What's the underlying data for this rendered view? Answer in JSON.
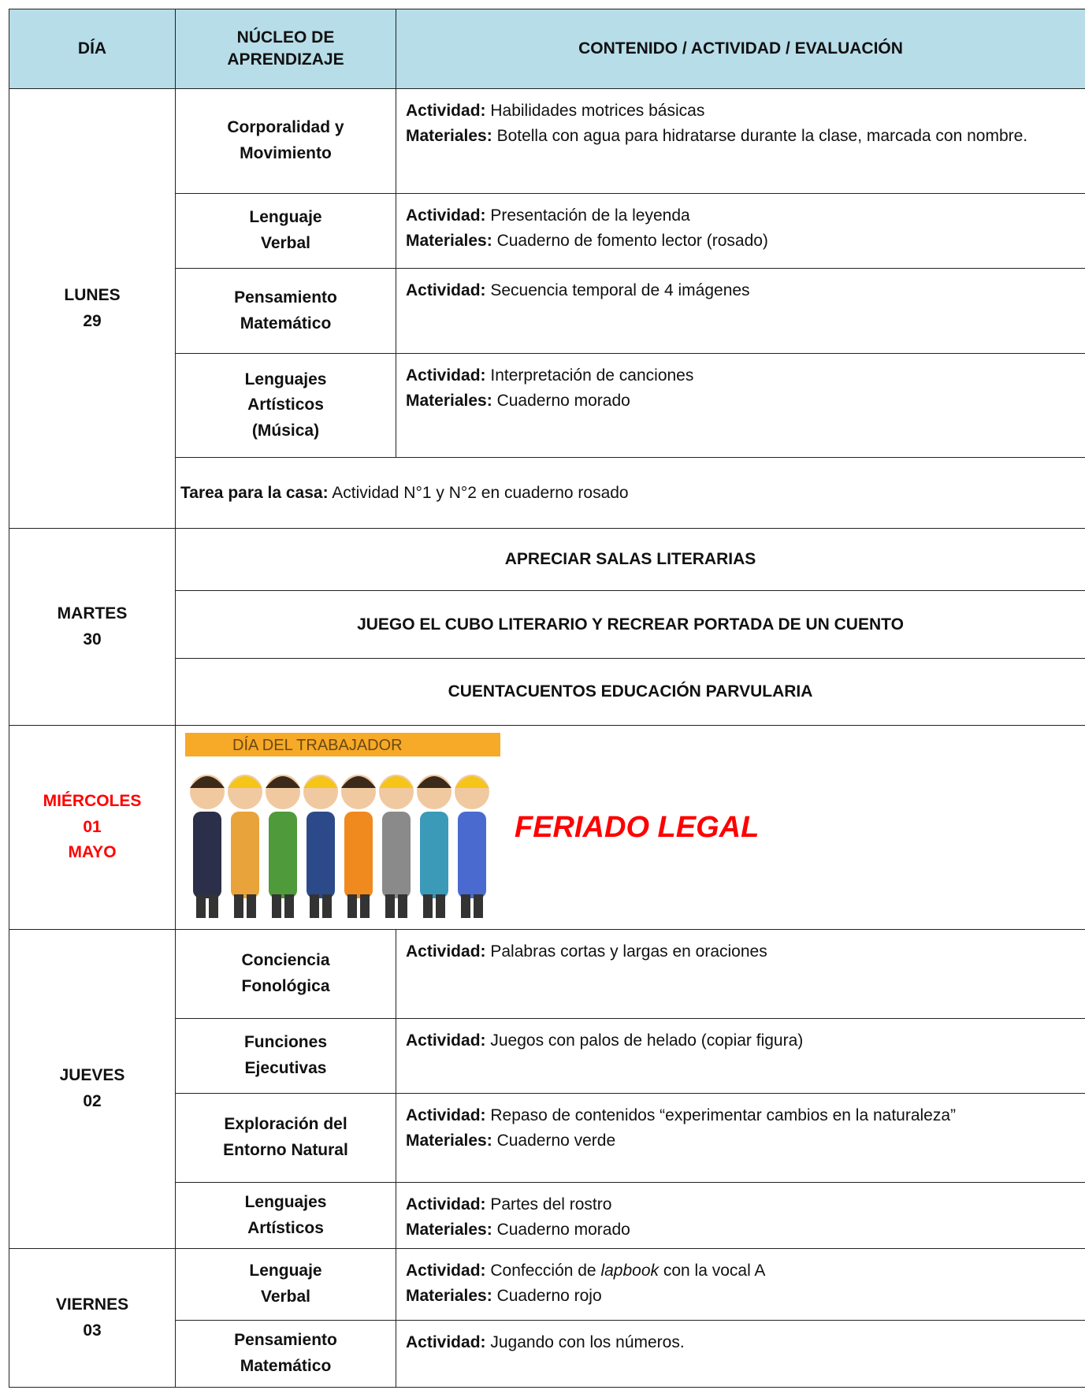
{
  "header": {
    "day": "DÍA",
    "core": [
      "NÚCLEO DE",
      "APRENDIZAJE"
    ],
    "content": "CONTENIDO / ACTIVIDAD / EVALUACIÓN"
  },
  "days": [
    {
      "day": [
        "LUNES",
        "29"
      ],
      "rows": [
        {
          "core": [
            "Corporalidad y",
            "Movimiento"
          ],
          "items": [
            {
              "label": "Actividad:",
              "text": "Habilidades motrices básicas"
            },
            {
              "label": "Materiales:",
              "text": "Botella con agua para hidratarse durante la clase, marcada con nombre."
            }
          ]
        },
        {
          "core": [
            "Lenguaje",
            "Verbal"
          ],
          "items": [
            {
              "label": "Actividad:",
              "text": "Presentación de la leyenda"
            },
            {
              "label": "Materiales:",
              "text": "Cuaderno de fomento lector (rosado)"
            }
          ]
        },
        {
          "core": [
            "Pensamiento",
            "Matemático"
          ],
          "items": [
            {
              "label": "Actividad:",
              "text": "Secuencia temporal de 4 imágenes"
            }
          ]
        },
        {
          "core": [
            "Lenguajes",
            "Artísticos",
            "(Música)"
          ],
          "items": [
            {
              "label": "Actividad:",
              "text": "Interpretación de canciones"
            },
            {
              "label": "Materiales:",
              "text": "Cuaderno morado"
            }
          ]
        }
      ],
      "homework": {
        "label": "Tarea para la casa:",
        "text": "Actividad N°1 y N°2 en cuaderno rosado"
      }
    },
    {
      "day": [
        "MARTES",
        "30"
      ],
      "events": [
        "APRECIAR SALAS LITERARIAS",
        "JUEGO EL CUBO LITERARIO Y RECREAR PORTADA DE UN CUENTO",
        "CUENTACUENTOS EDUCACIÓN PARVULARIA"
      ]
    },
    {
      "day": [
        "MIÉRCOLES",
        "01",
        "MAYO"
      ],
      "color": "#ff0000",
      "holiday": {
        "banner": "DÍA DEL TRABAJADOR",
        "text": "FERIADO LEGAL"
      }
    },
    {
      "day": [
        "JUEVES",
        "02"
      ],
      "rows": [
        {
          "core": [
            "Conciencia",
            "Fonológica"
          ],
          "items": [
            {
              "label": "Actividad:",
              "text": "Palabras cortas y largas en oraciones"
            }
          ]
        },
        {
          "core": [
            "Funciones",
            "Ejecutivas"
          ],
          "items": [
            {
              "label": "Actividad:",
              "text": "Juegos con palos de helado (copiar figura)"
            }
          ]
        },
        {
          "core": [
            "Exploración del",
            "Entorno Natural"
          ],
          "items": [
            {
              "label": "Actividad:",
              "text": "Repaso de contenidos “experimentar cambios en la naturaleza”"
            },
            {
              "label": "Materiales:",
              "text": "Cuaderno verde"
            }
          ]
        },
        {
          "core": [
            "Lenguajes",
            "Artísticos"
          ],
          "items": [
            {
              "label": "Actividad:",
              "text": "Partes del rostro"
            },
            {
              "label": "Materiales:",
              "text": "Cuaderno morado"
            }
          ]
        }
      ]
    },
    {
      "day": [
        "VIERNES",
        "03"
      ],
      "rows": [
        {
          "core": [
            "Lenguaje",
            "Verbal"
          ],
          "items": [
            {
              "label": "Actividad:",
              "text": [
                "Confección de ",
                {
                  "italic": "lapbook"
                },
                " con la vocal A"
              ]
            },
            {
              "label": "Materiales:",
              "text": "Cuaderno rojo"
            }
          ]
        },
        {
          "core": [
            "Pensamiento",
            "Matemático"
          ],
          "items": [
            {
              "label": "Actividad:",
              "text": "Jugando con los números."
            }
          ]
        }
      ]
    }
  ]
}
